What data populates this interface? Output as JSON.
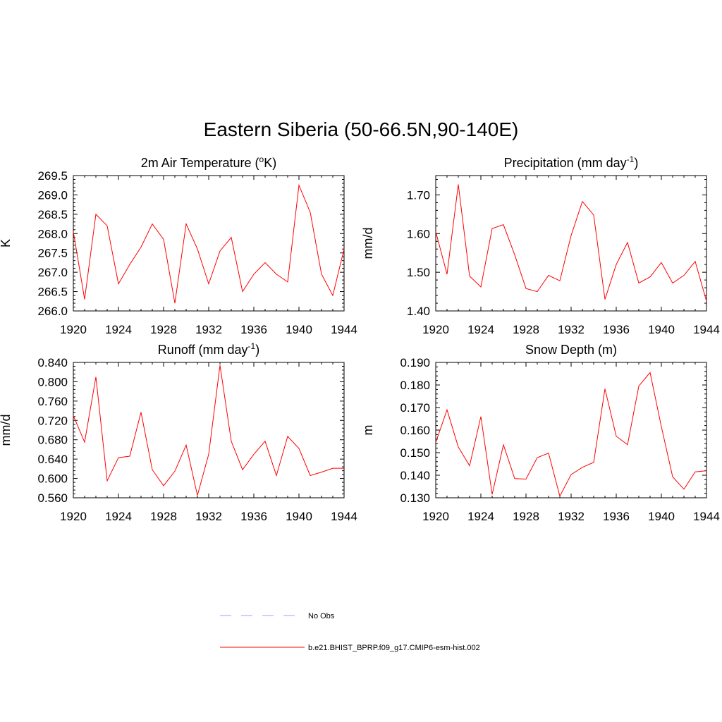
{
  "title": "Eastern Siberia (50-66.5N,90-140E)",
  "colors": {
    "model": "#ff0000",
    "obs": "#a0a0ff",
    "axis": "#000000"
  },
  "legend": {
    "obs_label": "No Obs",
    "model_label": "b.e21.BHIST_BPRP.f09_g17.CMIP6-esm-hist.002"
  },
  "chart_data": [
    {
      "type": "line",
      "title": "2m Air Temperature (°K)",
      "title_main": "2m Air Temperature (",
      "title_sup": "o",
      "title_tail": "K)",
      "ylabel": "K",
      "xlim": [
        1920,
        1944
      ],
      "ylim": [
        266.0,
        269.5
      ],
      "xticks": [
        "1920",
        "1924",
        "1928",
        "1932",
        "1936",
        "1940",
        "1944"
      ],
      "yticks": [
        "266.0",
        "266.5",
        "267.0",
        "267.5",
        "268.0",
        "268.5",
        "269.0",
        "269.5"
      ],
      "series": [
        {
          "name": "b.e21.BHIST_BPRP.f09_g17.CMIP6-esm-hist.002",
          "x": [
            1920,
            1921,
            1922,
            1923,
            1924,
            1925,
            1926,
            1927,
            1928,
            1929,
            1930,
            1931,
            1932,
            1933,
            1934,
            1935,
            1936,
            1937,
            1938,
            1939,
            1940,
            1941,
            1942,
            1943,
            1944
          ],
          "values": [
            268.05,
            266.3,
            268.5,
            268.2,
            266.7,
            267.2,
            267.65,
            268.25,
            267.85,
            266.2,
            268.25,
            267.6,
            266.7,
            267.55,
            267.9,
            266.5,
            266.95,
            267.25,
            266.95,
            266.75,
            269.25,
            268.55,
            266.95,
            266.4,
            267.6
          ]
        }
      ]
    },
    {
      "type": "line",
      "title": "Precipitation (mm day-1)",
      "title_main": "Precipitation (mm day",
      "title_sup": "-1",
      "title_tail": ")",
      "ylabel": "mm/d",
      "xlim": [
        1920,
        1944
      ],
      "ylim": [
        1.4,
        1.75
      ],
      "xticks": [
        "1920",
        "1924",
        "1928",
        "1932",
        "1936",
        "1940",
        "1944"
      ],
      "yticks": [
        "1.40",
        "1.50",
        "1.60",
        "1.70"
      ],
      "series": [
        {
          "name": "b.e21.BHIST_BPRP.f09_g17.CMIP6-esm-hist.002",
          "x": [
            1920,
            1921,
            1922,
            1923,
            1924,
            1925,
            1926,
            1927,
            1928,
            1929,
            1930,
            1931,
            1932,
            1933,
            1934,
            1935,
            1936,
            1937,
            1938,
            1939,
            1940,
            1941,
            1942,
            1943,
            1944
          ],
          "values": [
            1.605,
            1.495,
            1.727,
            1.49,
            1.462,
            1.613,
            1.623,
            1.545,
            1.458,
            1.45,
            1.492,
            1.478,
            1.595,
            1.683,
            1.648,
            1.43,
            1.52,
            1.577,
            1.472,
            1.488,
            1.525,
            1.472,
            1.492,
            1.528,
            1.425
          ]
        }
      ]
    },
    {
      "type": "line",
      "title": "Runoff (mm day-1)",
      "title_main": "Runoff (mm day",
      "title_sup": "-1",
      "title_tail": ")",
      "ylabel": "mm/d",
      "xlim": [
        1920,
        1944
      ],
      "ylim": [
        0.56,
        0.84
      ],
      "xticks": [
        "1920",
        "1924",
        "1928",
        "1932",
        "1936",
        "1940",
        "1944"
      ],
      "yticks": [
        "0.560",
        "0.600",
        "0.640",
        "0.680",
        "0.720",
        "0.760",
        "0.800",
        "0.840"
      ],
      "series": [
        {
          "name": "b.e21.BHIST_BPRP.f09_g17.CMIP6-esm-hist.002",
          "x": [
            1920,
            1921,
            1922,
            1923,
            1924,
            1925,
            1926,
            1927,
            1928,
            1929,
            1930,
            1931,
            1932,
            1933,
            1934,
            1935,
            1936,
            1937,
            1938,
            1939,
            1940,
            1941,
            1942,
            1943,
            1944
          ],
          "values": [
            0.73,
            0.675,
            0.81,
            0.595,
            0.643,
            0.646,
            0.737,
            0.618,
            0.585,
            0.615,
            0.669,
            0.565,
            0.65,
            0.834,
            0.677,
            0.618,
            0.65,
            0.677,
            0.606,
            0.687,
            0.662,
            0.606,
            0.613,
            0.621,
            0.621
          ]
        }
      ]
    },
    {
      "type": "line",
      "title": "Snow Depth (m)",
      "title_main": "Snow Depth (m)",
      "title_sup": "",
      "title_tail": "",
      "ylabel": "m",
      "xlim": [
        1920,
        1944
      ],
      "ylim": [
        0.13,
        0.19
      ],
      "xticks": [
        "1920",
        "1924",
        "1928",
        "1932",
        "1936",
        "1940",
        "1944"
      ],
      "yticks": [
        "0.130",
        "0.140",
        "0.150",
        "0.160",
        "0.170",
        "0.180",
        "0.190"
      ],
      "series": [
        {
          "name": "b.e21.BHIST_BPRP.f09_g17.CMIP6-esm-hist.002",
          "x": [
            1920,
            1921,
            1922,
            1923,
            1924,
            1925,
            1926,
            1927,
            1928,
            1929,
            1930,
            1931,
            1932,
            1933,
            1934,
            1935,
            1936,
            1937,
            1938,
            1939,
            1940,
            1941,
            1942,
            1943,
            1944
          ],
          "values": [
            0.1545,
            0.169,
            0.1525,
            0.1442,
            0.166,
            0.1315,
            0.1535,
            0.1385,
            0.1383,
            0.1478,
            0.1498,
            0.1307,
            0.1403,
            0.1435,
            0.1457,
            0.1783,
            0.1573,
            0.1535,
            0.1795,
            0.1855,
            0.1615,
            0.1393,
            0.1338,
            0.1415,
            0.142
          ]
        }
      ]
    }
  ]
}
